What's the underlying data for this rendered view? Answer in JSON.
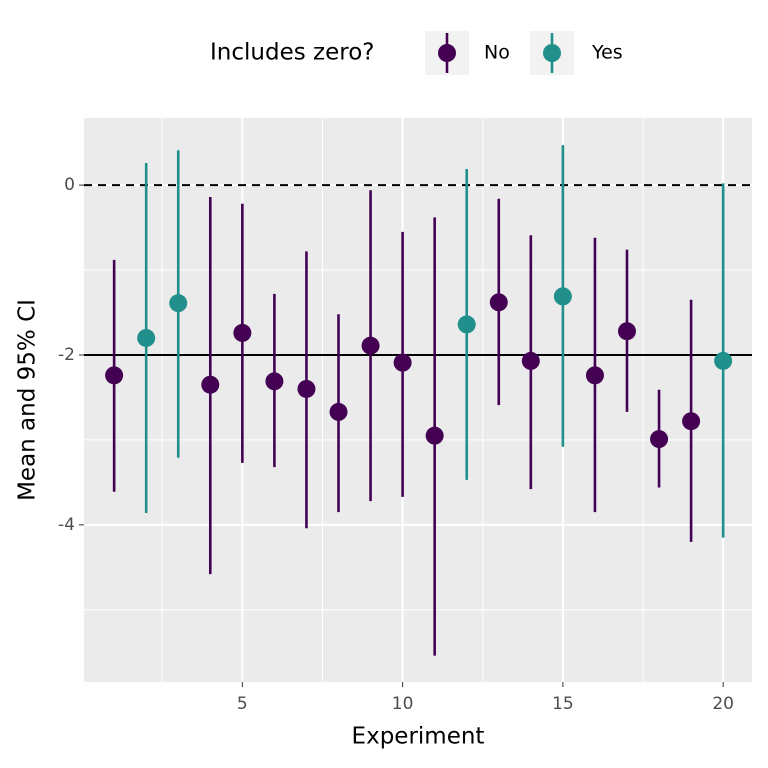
{
  "chart_data": {
    "type": "pointrange",
    "x_label": "Experiment",
    "y_label": "Mean and 95% CI",
    "legend_title": "Includes zero?",
    "legend_position": "top",
    "xlim": [
      0.06,
      20.9
    ],
    "ylim": [
      -5.85,
      0.79
    ],
    "xticks": [
      5,
      10,
      15,
      20
    ],
    "yticks": [
      -4,
      -2,
      0
    ],
    "xminor": [
      2.5,
      7.5,
      12.5,
      17.5
    ],
    "yminor": [
      -5,
      -3,
      -1
    ],
    "grid": true,
    "hlines": [
      {
        "value": 0,
        "style": "dashed"
      },
      {
        "value": -2,
        "style": "solid"
      }
    ],
    "series": [
      {
        "name": "No",
        "color": "#440154",
        "x": [
          1,
          4,
          5,
          6,
          7,
          8,
          9,
          10,
          11,
          13,
          14,
          16,
          17,
          18,
          19
        ],
        "values": [
          -2.24,
          -2.35,
          -1.74,
          -2.31,
          -2.4,
          -2.67,
          -1.89,
          -2.09,
          -2.95,
          -1.38,
          -2.07,
          -2.24,
          -1.72,
          -2.99,
          -2.78
        ],
        "lower": [
          -3.61,
          -4.58,
          -3.27,
          -3.32,
          -4.04,
          -3.85,
          -3.72,
          -3.67,
          -5.54,
          -2.59,
          -3.58,
          -3.85,
          -2.67,
          -3.56,
          -4.2
        ],
        "upper": [
          -0.88,
          -0.14,
          -0.22,
          -1.28,
          -0.78,
          -1.52,
          -0.06,
          -0.55,
          -0.38,
          -0.16,
          -0.59,
          -0.62,
          -0.76,
          -2.41,
          -1.35
        ]
      },
      {
        "name": "Yes",
        "color": "#21908C",
        "x": [
          2,
          3,
          12,
          15,
          20
        ],
        "values": [
          -1.8,
          -1.39,
          -1.64,
          -1.31,
          -2.07
        ],
        "lower": [
          -3.86,
          -3.21,
          -3.47,
          -3.08,
          -4.15
        ],
        "upper": [
          0.26,
          0.41,
          0.19,
          0.47,
          0.02
        ]
      }
    ]
  }
}
